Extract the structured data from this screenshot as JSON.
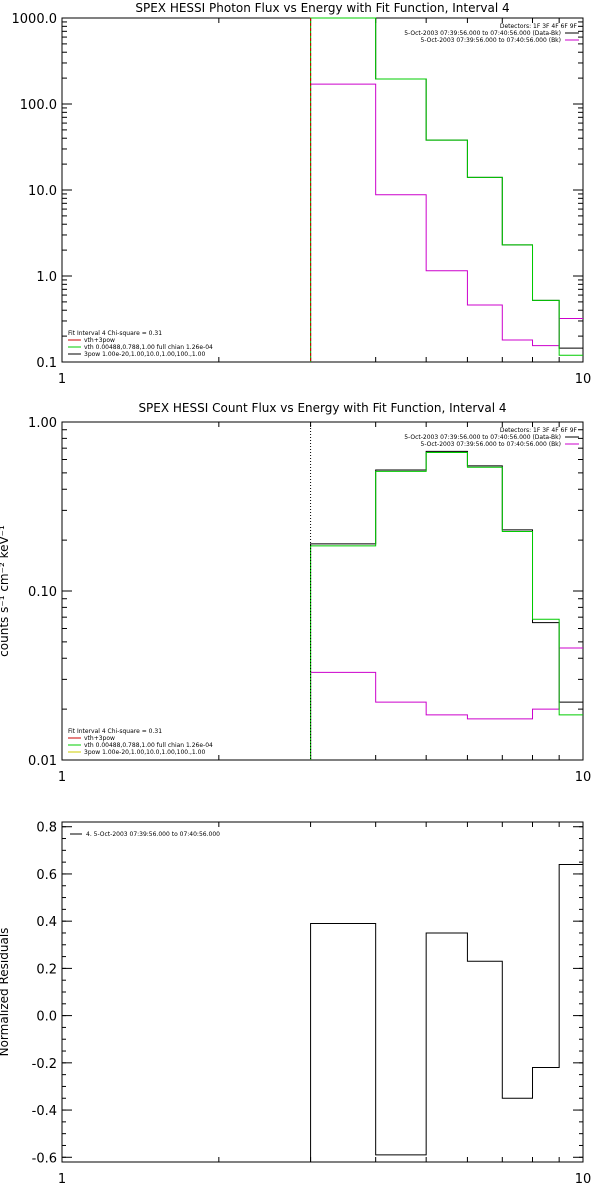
{
  "chart_data": [
    {
      "type": "line",
      "title": "SPEX HESSI Photon Flux vs Energy with Fit Function, Interval 4",
      "xlabel": "",
      "ylabel": "",
      "xscale": "log",
      "yscale": "log",
      "xlim": [
        1,
        10
      ],
      "ylim": [
        0.1,
        1000
      ],
      "grid": false,
      "x_ticks": [
        {
          "v": 1,
          "label": "1"
        },
        {
          "v": 10,
          "label": "10"
        }
      ],
      "y_ticks": [
        {
          "v": 0.1,
          "label": "0.1"
        },
        {
          "v": 1,
          "label": "1.0"
        },
        {
          "v": 10,
          "label": "10.0"
        },
        {
          "v": 100,
          "label": "100.0"
        },
        {
          "v": 1000,
          "label": "1000.0"
        }
      ],
      "legend_top_right": [
        {
          "text": "Detectors: 1F 3F 4F 6F 9F",
          "color": ""
        },
        {
          "text": "5-Oct-2003 07:39:56.000 to 07:40:56.000 (Data-Bk)",
          "color": "#000000"
        },
        {
          "text": "5-Oct-2003 07:39:56.000 to 07:40:56.000 (Bk)",
          "color": "#cc00cc"
        }
      ],
      "legend_bottom_left": [
        {
          "text": "Fit Interval  4    Chi-square = 0.31",
          "color": ""
        },
        {
          "text": "vth+3pow",
          "color": "#cc0000"
        },
        {
          "text": "vth 0.00488,0.788,1.00   full chian 1.26e-04",
          "color": "#00cc00"
        },
        {
          "text": "3pow 1.00e-20,1.00,10.0,1.00,100.,1.00",
          "color": "#000000"
        }
      ],
      "bin_edges": [
        3,
        4,
        5,
        6,
        7,
        8,
        9,
        10
      ],
      "series": [
        {
          "name": "5-Oct-2003 07:39:56.000 to 07:40:56.000 (Data-Bk)",
          "color": "#000000",
          "style": "step",
          "values": [
            1000,
            195,
            38,
            14,
            2.3,
            0.52,
            0.145
          ]
        },
        {
          "name": "5-Oct-2003 07:39:56.000 to 07:40:56.000 (Bk)",
          "color": "#cc00cc",
          "style": "step",
          "values": [
            170,
            8.8,
            1.15,
            0.46,
            0.18,
            0.155,
            0.32
          ]
        },
        {
          "name": "vth 0.00488,0.788,1.00   full chian 1.26e-04",
          "color": "#00cc00",
          "style": "step",
          "values": [
            1000,
            195,
            38,
            14,
            2.3,
            0.52,
            0.12
          ]
        },
        {
          "name": "vth+3pow",
          "color": "#cc0000",
          "style": "vline",
          "x": 3
        }
      ]
    },
    {
      "type": "line",
      "title": "SPEX HESSI Count Flux vs Energy with Fit Function, Interval 4",
      "xlabel": "",
      "ylabel": "counts s⁻¹ cm⁻² keV⁻¹",
      "xscale": "log",
      "yscale": "log",
      "xlim": [
        1,
        10
      ],
      "ylim": [
        0.01,
        1
      ],
      "grid": false,
      "x_ticks": [
        {
          "v": 1,
          "label": "1"
        },
        {
          "v": 10,
          "label": "10"
        }
      ],
      "y_ticks": [
        {
          "v": 0.01,
          "label": "0.01"
        },
        {
          "v": 0.1,
          "label": "0.10"
        },
        {
          "v": 1,
          "label": "1.00"
        }
      ],
      "legend_top_right": [
        {
          "text": "Detectors: 1F 3F 4F 6F 9F",
          "color": ""
        },
        {
          "text": "5-Oct-2003 07:39:56.000 to 07:40:56.000 (Data-Bk)",
          "color": "#000000"
        },
        {
          "text": "5-Oct-2003 07:39:56.000 to 07:40:56.000 (Bk)",
          "color": "#cc00cc"
        }
      ],
      "legend_bottom_left": [
        {
          "text": "Fit Interval  4    Chi-square = 0.31",
          "color": ""
        },
        {
          "text": "vth+3pow",
          "color": "#cc0000"
        },
        {
          "text": "vth 0.00488,0.788,1.00   full chian 1.26e-04",
          "color": "#00cc00"
        },
        {
          "text": "3pow 1.00e-20,1.00,10.0,1.00,100.,1.00",
          "color": "#cccc00"
        }
      ],
      "bin_edges": [
        3,
        4,
        5,
        6,
        7,
        8,
        9,
        10
      ],
      "series": [
        {
          "name": "5-Oct-2003 07:39:56.000 to 07:40:56.000 (Data-Bk)",
          "color": "#000000",
          "style": "step",
          "values": [
            0.19,
            0.52,
            0.67,
            0.55,
            0.23,
            0.065,
            0.022
          ]
        },
        {
          "name": "5-Oct-2003 07:39:56.000 to 07:40:56.000 (Bk)",
          "color": "#cc00cc",
          "style": "step",
          "values": [
            0.033,
            0.022,
            0.0185,
            0.0175,
            0.0175,
            0.02,
            0.046
          ]
        },
        {
          "name": "vth 0.00488,0.788,1.00   full chian 1.26e-04",
          "color": "#00cc00",
          "style": "step",
          "values": [
            0.185,
            0.51,
            0.66,
            0.54,
            0.225,
            0.068,
            0.0185
          ]
        },
        {
          "name": "vth+3pow",
          "color": "#000000",
          "style": "vline-dotted",
          "x": 3
        }
      ]
    },
    {
      "type": "line",
      "title": "",
      "xlabel": "",
      "ylabel": "Normalized Residuals",
      "xscale": "log",
      "yscale": "linear",
      "xlim": [
        1,
        10
      ],
      "ylim": [
        -0.62,
        0.82
      ],
      "grid": false,
      "x_ticks": [
        {
          "v": 1,
          "label": "1"
        },
        {
          "v": 10,
          "label": "10"
        }
      ],
      "y_ticks": [
        {
          "v": -0.6,
          "label": "-0.6"
        },
        {
          "v": -0.4,
          "label": "-0.4"
        },
        {
          "v": -0.2,
          "label": "-0.2"
        },
        {
          "v": 0.0,
          "label": "0.0"
        },
        {
          "v": 0.2,
          "label": "0.2"
        },
        {
          "v": 0.4,
          "label": "0.4"
        },
        {
          "v": 0.6,
          "label": "0.6"
        },
        {
          "v": 0.8,
          "label": "0.8"
        }
      ],
      "legend_top_left": [
        {
          "text": "4.  5-Oct-2003 07:39:56.000 to 07:40:56.000",
          "color": "#000000"
        }
      ],
      "bin_edges": [
        3,
        4,
        5,
        6,
        7,
        8,
        9,
        10
      ],
      "series": [
        {
          "name": "4.  5-Oct-2003 07:39:56.000 to 07:40:56.000",
          "color": "#000000",
          "style": "step",
          "values": [
            0.39,
            -0.59,
            0.35,
            0.23,
            -0.35,
            -0.22,
            0.64
          ]
        }
      ]
    }
  ]
}
